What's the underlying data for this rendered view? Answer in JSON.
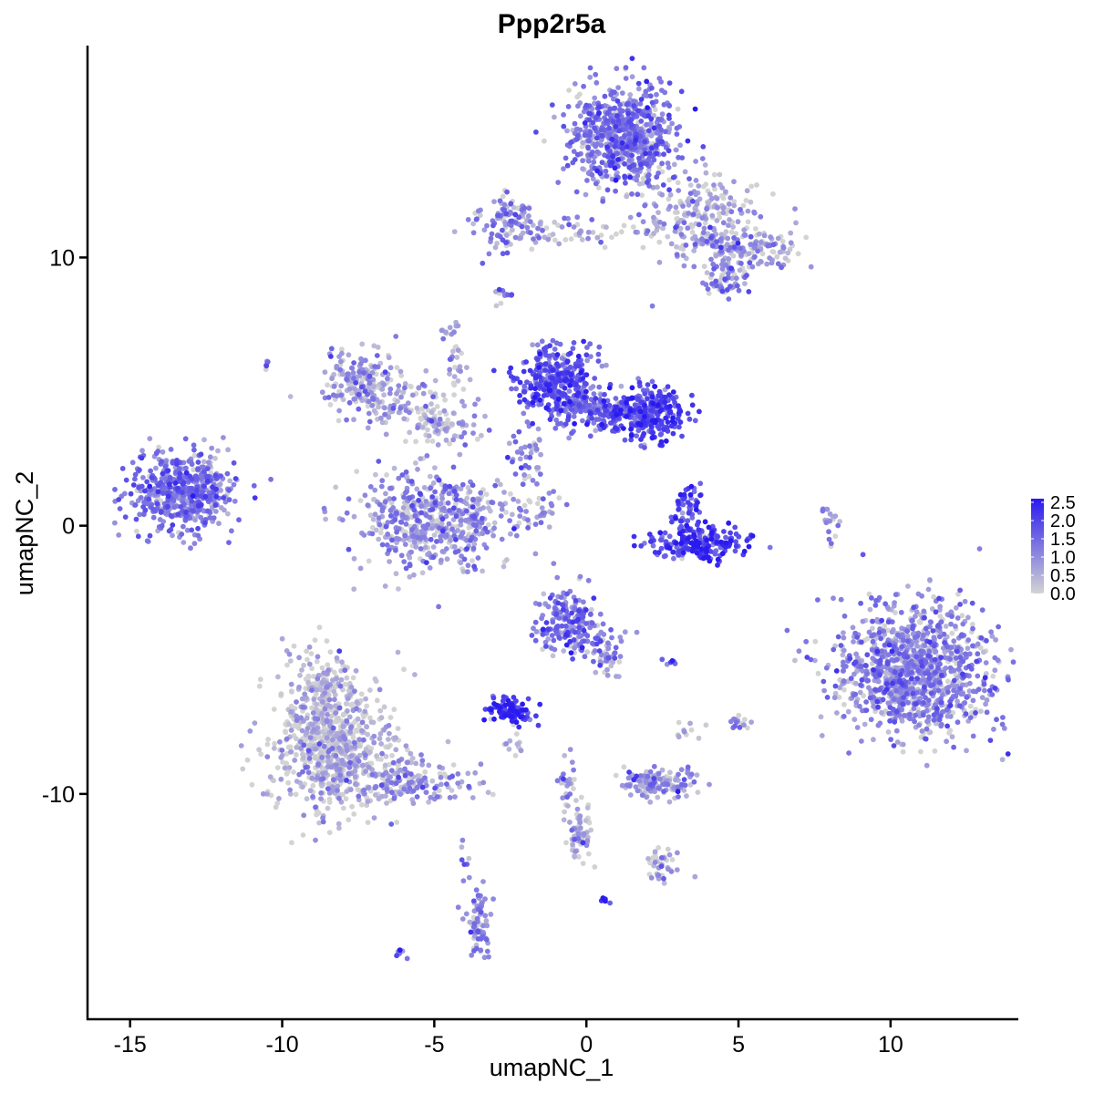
{
  "chart_data": {
    "type": "scatter",
    "title": "Ppp2r5a",
    "xlabel": "umapNC_1",
    "ylabel": "umapNC_2",
    "xlim": [
      -16.4,
      14.2
    ],
    "ylim": [
      -18.4,
      17.9
    ],
    "x_ticks": [
      -15,
      -10,
      -5,
      0,
      5,
      10
    ],
    "x_tick_labels": [
      "-15",
      "-10",
      "-5",
      "0",
      "5",
      "10"
    ],
    "y_ticks": [
      -10,
      0,
      10
    ],
    "y_tick_labels": [
      "-10",
      "0",
      "10"
    ],
    "grid": false,
    "legend_position": "right",
    "color_scale": {
      "low_color": "#d3d3d3",
      "high_color": "#2a1af0",
      "min": 0.0,
      "max": 2.6,
      "ticks": [
        0.0,
        0.5,
        1.0,
        1.5,
        2.0,
        2.5
      ],
      "tick_labels": [
        "0.0",
        "0.5",
        "1.0",
        "1.5",
        "2.0",
        "2.5"
      ]
    },
    "clusters": [
      {
        "cx": 1.3,
        "cy": 14.5,
        "sx": 0.9,
        "sy": 1.0,
        "n": 700,
        "mean": 1.2
      },
      {
        "cx": 3.8,
        "cy": 11.5,
        "sx": 1.0,
        "sy": 0.8,
        "n": 220,
        "mean": 0.6
      },
      {
        "cx": 5.2,
        "cy": 10.3,
        "sx": 0.9,
        "sy": 0.4,
        "n": 150,
        "mean": 0.8
      },
      {
        "cx": 4.5,
        "cy": 9.2,
        "sx": 0.4,
        "sy": 0.35,
        "n": 60,
        "mean": 1.1
      },
      {
        "cx": -2.5,
        "cy": 11.3,
        "sx": 0.5,
        "sy": 0.5,
        "n": 110,
        "mean": 1.0
      },
      {
        "cx": -0.3,
        "cy": 11.0,
        "sx": 1.2,
        "sy": 0.3,
        "n": 60,
        "mean": 0.7
      },
      {
        "cx": -7.4,
        "cy": 5.4,
        "sx": 0.6,
        "sy": 0.6,
        "n": 180,
        "mean": 0.8
      },
      {
        "cx": -5.8,
        "cy": 4.5,
        "sx": 1.0,
        "sy": 0.5,
        "n": 90,
        "mean": 0.6
      },
      {
        "cx": -4.8,
        "cy": 3.7,
        "sx": 0.6,
        "sy": 0.4,
        "n": 70,
        "mean": 0.6
      },
      {
        "cx": -5.0,
        "cy": 0.2,
        "sx": 1.3,
        "sy": 0.9,
        "n": 550,
        "mean": 0.9
      },
      {
        "cx": -1.0,
        "cy": 5.5,
        "sx": 0.6,
        "sy": 0.6,
        "n": 280,
        "mean": 1.8
      },
      {
        "cx": 0.2,
        "cy": 4.4,
        "sx": 0.9,
        "sy": 0.4,
        "n": 220,
        "mean": 1.4
      },
      {
        "cx": 2.0,
        "cy": 4.2,
        "sx": 0.6,
        "sy": 0.5,
        "n": 260,
        "mean": 1.9
      },
      {
        "cx": -2.0,
        "cy": 2.5,
        "sx": 0.3,
        "sy": 0.6,
        "n": 40,
        "mean": 1.2
      },
      {
        "cx": -13.4,
        "cy": 1.2,
        "sx": 0.8,
        "sy": 0.7,
        "n": 450,
        "mean": 1.3
      },
      {
        "cx": -12.3,
        "cy": 1.6,
        "sx": 0.3,
        "sy": 0.8,
        "n": 60,
        "mean": 1.0
      },
      {
        "cx": 3.4,
        "cy": 0.5,
        "sx": 0.3,
        "sy": 0.5,
        "n": 60,
        "mean": 1.9
      },
      {
        "cx": 3.6,
        "cy": -0.7,
        "sx": 0.8,
        "sy": 0.3,
        "n": 200,
        "mean": 2.0
      },
      {
        "cx": 10.8,
        "cy": -5.4,
        "sx": 1.3,
        "sy": 1.2,
        "n": 1100,
        "mean": 1.0
      },
      {
        "cx": -8.3,
        "cy": -8.3,
        "sx": 1.0,
        "sy": 1.2,
        "n": 750,
        "mean": 0.4
      },
      {
        "cx": -8.6,
        "cy": -6.0,
        "sx": 0.5,
        "sy": 0.6,
        "n": 140,
        "mean": 0.4
      },
      {
        "cx": -5.5,
        "cy": -9.6,
        "sx": 1.1,
        "sy": 0.35,
        "n": 160,
        "mean": 0.7
      },
      {
        "cx": -0.6,
        "cy": -3.6,
        "sx": 0.5,
        "sy": 0.6,
        "n": 200,
        "mean": 1.3
      },
      {
        "cx": 0.6,
        "cy": -4.6,
        "sx": 0.4,
        "sy": 0.5,
        "n": 60,
        "mean": 1.0
      },
      {
        "cx": -2.5,
        "cy": -6.9,
        "sx": 0.35,
        "sy": 0.25,
        "n": 90,
        "mean": 2.1
      },
      {
        "cx": 2.3,
        "cy": -9.6,
        "sx": 0.6,
        "sy": 0.25,
        "n": 140,
        "mean": 0.9
      },
      {
        "cx": -0.2,
        "cy": -11.4,
        "sx": 0.2,
        "sy": 0.5,
        "n": 60,
        "mean": 0.6
      },
      {
        "cx": -0.6,
        "cy": -9.8,
        "sx": 0.15,
        "sy": 0.8,
        "n": 30,
        "mean": 0.7
      },
      {
        "cx": 2.4,
        "cy": -12.6,
        "sx": 0.3,
        "sy": 0.3,
        "n": 40,
        "mean": 0.8
      },
      {
        "cx": -3.5,
        "cy": -14.8,
        "sx": 0.2,
        "sy": 0.6,
        "n": 80,
        "mean": 1.0
      },
      {
        "cx": -6.1,
        "cy": -16.0,
        "sx": 0.1,
        "sy": 0.1,
        "n": 8,
        "mean": 1.2
      },
      {
        "cx": 8.0,
        "cy": 0.2,
        "sx": 0.2,
        "sy": 0.4,
        "n": 20,
        "mean": 0.8
      },
      {
        "cx": -2.7,
        "cy": 8.6,
        "sx": 0.15,
        "sy": 0.15,
        "n": 12,
        "mean": 1.2
      },
      {
        "cx": -4.5,
        "cy": 7.2,
        "sx": 0.15,
        "sy": 0.3,
        "n": 15,
        "mean": 1.0
      },
      {
        "cx": -10.5,
        "cy": 6.0,
        "sx": 0.1,
        "sy": 0.1,
        "n": 5,
        "mean": 1.3
      },
      {
        "cx": -1.4,
        "cy": 0.8,
        "sx": 0.5,
        "sy": 0.3,
        "n": 25,
        "mean": 0.8
      },
      {
        "cx": 5.0,
        "cy": -7.3,
        "sx": 0.2,
        "sy": 0.2,
        "n": 15,
        "mean": 0.9
      },
      {
        "cx": 3.3,
        "cy": -7.6,
        "sx": 0.3,
        "sy": 0.2,
        "n": 10,
        "mean": 0.6
      },
      {
        "cx": 2.8,
        "cy": -5.0,
        "sx": 0.15,
        "sy": 0.1,
        "n": 6,
        "mean": 1.3
      },
      {
        "cx": 0.6,
        "cy": -14.0,
        "sx": 0.1,
        "sy": 0.1,
        "n": 5,
        "mean": 2.1
      },
      {
        "cx": -4.0,
        "cy": -12.4,
        "sx": 0.1,
        "sy": 0.4,
        "n": 8,
        "mean": 1.2
      },
      {
        "cx": -2.2,
        "cy": -8.0,
        "sx": 0.3,
        "sy": 0.3,
        "n": 12,
        "mean": 0.5
      },
      {
        "cx": -4.3,
        "cy": 6.0,
        "sx": 0.2,
        "sy": 0.5,
        "n": 20,
        "mean": 0.4
      }
    ]
  }
}
